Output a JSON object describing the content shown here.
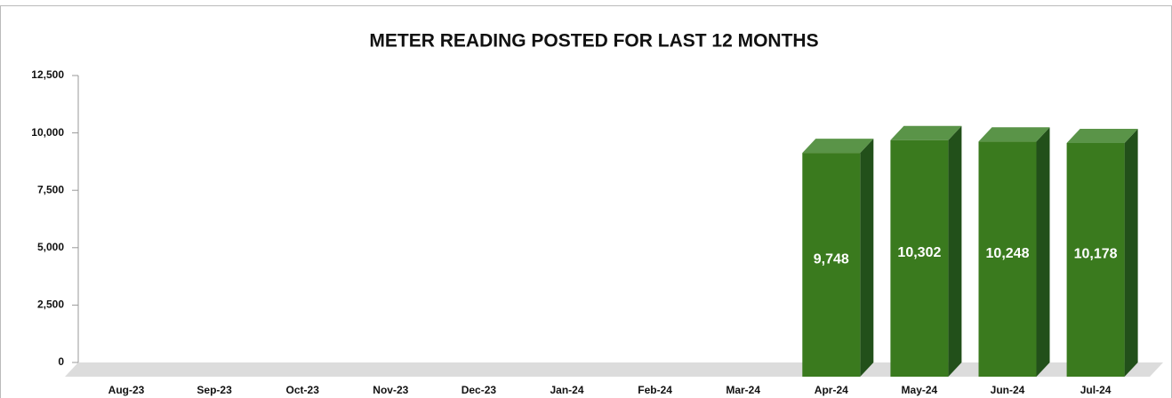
{
  "chart_data": {
    "type": "bar3d",
    "title": "METER READING POSTED FOR LAST 12 MONTHS",
    "categories": [
      "Aug-23",
      "Sep-23",
      "Oct-23",
      "Nov-23",
      "Dec-23",
      "Jan-24",
      "Feb-24",
      "Mar-24",
      "Apr-24",
      "May-24",
      "Jun-24",
      "Jul-24"
    ],
    "values": [
      0,
      0,
      0,
      0,
      0,
      0,
      0,
      0,
      9748,
      10302,
      10248,
      10178
    ],
    "value_labels": [
      null,
      null,
      null,
      null,
      null,
      null,
      null,
      null,
      "9,748",
      "10,302",
      "10,248",
      "10,178"
    ],
    "color": "#3a7a1e",
    "ylim": [
      0,
      12500
    ],
    "yticks": [
      0,
      {
        "value": 2500,
        "label": "2,500"
      },
      {
        "value": 5000,
        "label": "5,000"
      },
      {
        "value": 7500,
        "label": "7,500"
      },
      {
        "value": 10000,
        "label": "10,000"
      },
      {
        "value": 12500,
        "label": "12,500"
      }
    ]
  }
}
